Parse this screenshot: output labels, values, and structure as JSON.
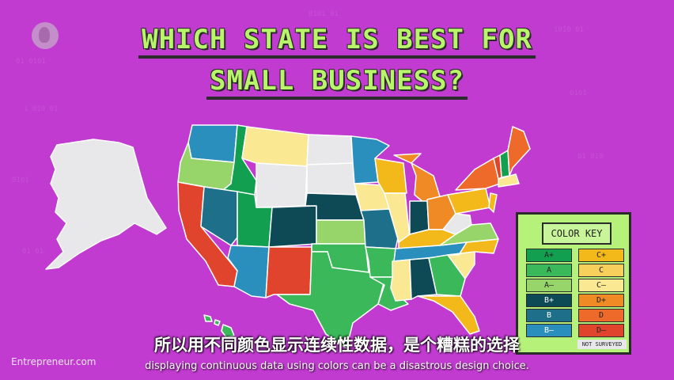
{
  "title": {
    "line1": "WHICH STATE IS BEST FOR",
    "line2": "SMALL BUSINESS?"
  },
  "colors": {
    "background": "#c13bd0",
    "A+": "#12a050",
    "A": "#3ab85a",
    "A-": "#97d56b",
    "B+": "#0d4a55",
    "B": "#1d6f8a",
    "B-": "#2b8fbd",
    "C+": "#f3b81a",
    "C": "#f6d05a",
    "C-": "#fbe892",
    "D+": "#ef8a24",
    "D": "#ee6a2a",
    "D-": "#e0442c",
    "not_surveyed": "#e8e8ea"
  },
  "color_key": {
    "title": "COLOR KEY",
    "left": [
      "A+",
      "A",
      "A–",
      "B+",
      "B",
      "B–"
    ],
    "right": [
      "C+",
      "C",
      "C–",
      "D+",
      "D",
      "D–"
    ],
    "left_grades": [
      "A+",
      "A",
      "A-",
      "B+",
      "B",
      "B-"
    ],
    "right_grades": [
      "C+",
      "C",
      "C-",
      "D+",
      "D",
      "D-"
    ],
    "not_surveyed": "NOT SURVEYED"
  },
  "map": {
    "states": [
      {
        "name": "Washington",
        "grade": "B-"
      },
      {
        "name": "Oregon",
        "grade": "A-"
      },
      {
        "name": "California",
        "grade": "D-"
      },
      {
        "name": "Idaho",
        "grade": "A+"
      },
      {
        "name": "Nevada",
        "grade": "B"
      },
      {
        "name": "Utah",
        "grade": "A+"
      },
      {
        "name": "Arizona",
        "grade": "B-"
      },
      {
        "name": "Montana",
        "grade": "C-"
      },
      {
        "name": "Wyoming",
        "grade": "not_surveyed"
      },
      {
        "name": "Colorado",
        "grade": "B+"
      },
      {
        "name": "New Mexico",
        "grade": "D-"
      },
      {
        "name": "North Dakota",
        "grade": "not_surveyed"
      },
      {
        "name": "South Dakota",
        "grade": "not_surveyed"
      },
      {
        "name": "Nebraska",
        "grade": "B+"
      },
      {
        "name": "Kansas",
        "grade": "A-"
      },
      {
        "name": "Oklahoma",
        "grade": "A"
      },
      {
        "name": "Texas",
        "grade": "A"
      },
      {
        "name": "Minnesota",
        "grade": "B-"
      },
      {
        "name": "Iowa",
        "grade": "C-"
      },
      {
        "name": "Missouri",
        "grade": "B"
      },
      {
        "name": "Arkansas",
        "grade": "A"
      },
      {
        "name": "Louisiana",
        "grade": "A"
      },
      {
        "name": "Wisconsin",
        "grade": "C+"
      },
      {
        "name": "Illinois",
        "grade": "C-"
      },
      {
        "name": "Michigan",
        "grade": "D+"
      },
      {
        "name": "Indiana",
        "grade": "B+"
      },
      {
        "name": "Ohio",
        "grade": "D+"
      },
      {
        "name": "Kentucky",
        "grade": "C+"
      },
      {
        "name": "Tennessee",
        "grade": "B-"
      },
      {
        "name": "Mississippi",
        "grade": "C-"
      },
      {
        "name": "Alabama",
        "grade": "B+"
      },
      {
        "name": "Georgia",
        "grade": "A"
      },
      {
        "name": "Florida",
        "grade": "C+"
      },
      {
        "name": "South Carolina",
        "grade": "C-"
      },
      {
        "name": "North Carolina",
        "grade": "C+"
      },
      {
        "name": "Virginia",
        "grade": "A-"
      },
      {
        "name": "West Virginia",
        "grade": "not_surveyed"
      },
      {
        "name": "Pennsylvania",
        "grade": "C+"
      },
      {
        "name": "New York",
        "grade": "D"
      },
      {
        "name": "Vermont",
        "grade": "D-"
      },
      {
        "name": "New Hampshire",
        "grade": "A+"
      },
      {
        "name": "Maine",
        "grade": "D"
      },
      {
        "name": "Massachusetts",
        "grade": "C-"
      },
      {
        "name": "Alaska",
        "grade": "not_surveyed"
      },
      {
        "name": "Hawaii",
        "grade": "A"
      }
    ]
  },
  "subtitles": {
    "chinese": "所以用不同颜色显示连续性数据，是个糟糕的选择",
    "english": "displaying continuous data using colors can be a disastrous design choice."
  },
  "watermark": "Entrepreneur.com",
  "icons": {
    "channel_logo": "pbs-logo-icon"
  }
}
